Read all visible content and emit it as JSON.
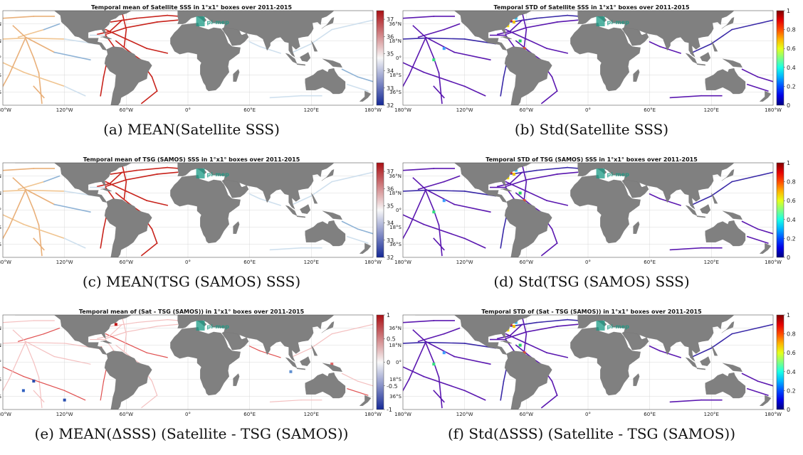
{
  "watermark": "pi-mep",
  "lon_labels": [
    "180°W",
    "120°W",
    "60°W",
    "0°",
    "60°E",
    "120°E",
    "180°W"
  ],
  "lat_labels": [
    "36°N",
    "18°N",
    "0°",
    "18°S",
    "36°S"
  ],
  "colors": {
    "land": "#808080",
    "ocean": "#ffffff",
    "grid": "#d8d8d8",
    "watermark": "#1a9a84"
  },
  "chart_data": [
    {
      "type": "heatmap",
      "title": "Temporal mean of Satellite SSS in 1°x1° boxes over 2011-2015",
      "caption": "(a) MEAN(Satellite SSS)",
      "colormap": "red-white-blue",
      "colorbar": {
        "min": 32,
        "max": 37.5,
        "ticks": [
          32,
          33,
          34,
          35,
          36,
          37
        ]
      },
      "xlim": [
        -180,
        180
      ],
      "ylim": [
        -50,
        50
      ]
    },
    {
      "type": "heatmap",
      "title": "Temporal STD of Satellite SSS in 1°x1° boxes over 2011-2015",
      "caption": "(b) Std(Satellite SSS)",
      "colormap": "jet",
      "colorbar": {
        "min": 0,
        "max": 1,
        "ticks": [
          0,
          0.2,
          0.4,
          0.6,
          0.8,
          1
        ]
      },
      "xlim": [
        -180,
        180
      ],
      "ylim": [
        -50,
        50
      ]
    },
    {
      "type": "heatmap",
      "title": "Temporal mean of TSG (SAMOS) SSS in 1°x1° boxes over 2011-2015",
      "caption": "(c) MEAN(TSG (SAMOS) SSS)",
      "colormap": "red-white-blue",
      "colorbar": {
        "min": 32,
        "max": 37.5,
        "ticks": [
          32,
          33,
          34,
          35,
          36,
          37
        ]
      },
      "xlim": [
        -180,
        180
      ],
      "ylim": [
        -50,
        50
      ]
    },
    {
      "type": "heatmap",
      "title": "Temporal STD of TSG (SAMOS) SSS in 1°x1° boxes over 2011-2015",
      "caption": "(d) Std(TSG (SAMOS) SSS)",
      "colormap": "jet",
      "colorbar": {
        "min": 0,
        "max": 1,
        "ticks": [
          0,
          0.2,
          0.4,
          0.6,
          0.8,
          1
        ]
      },
      "xlim": [
        -180,
        180
      ],
      "ylim": [
        -50,
        50
      ]
    },
    {
      "type": "heatmap",
      "title": "Temporal mean of (Sat - TSG (SAMOS)) in 1°x1° boxes over 2011-2015",
      "caption": "(e) MEAN(ΔSSS) (Satellite - TSG (SAMOS))",
      "colormap": "blue-white-red",
      "colorbar": {
        "min": -1,
        "max": 1,
        "ticks": [
          -1,
          -0.5,
          0,
          0.5,
          1
        ]
      },
      "xlim": [
        -180,
        180
      ],
      "ylim": [
        -50,
        50
      ]
    },
    {
      "type": "heatmap",
      "title": "Temporal STD of (Sat - TSG (SAMOS)) in 1°x1° boxes over 2011-2015",
      "caption": "(f) Std(ΔSSS) (Satellite - TSG (SAMOS))",
      "colormap": "jet",
      "colorbar": {
        "min": 0,
        "max": 1,
        "ticks": [
          0,
          0.2,
          0.4,
          0.6,
          0.8,
          1
        ]
      },
      "xlim": [
        -180,
        180
      ],
      "ylim": [
        -50,
        50
      ]
    }
  ]
}
